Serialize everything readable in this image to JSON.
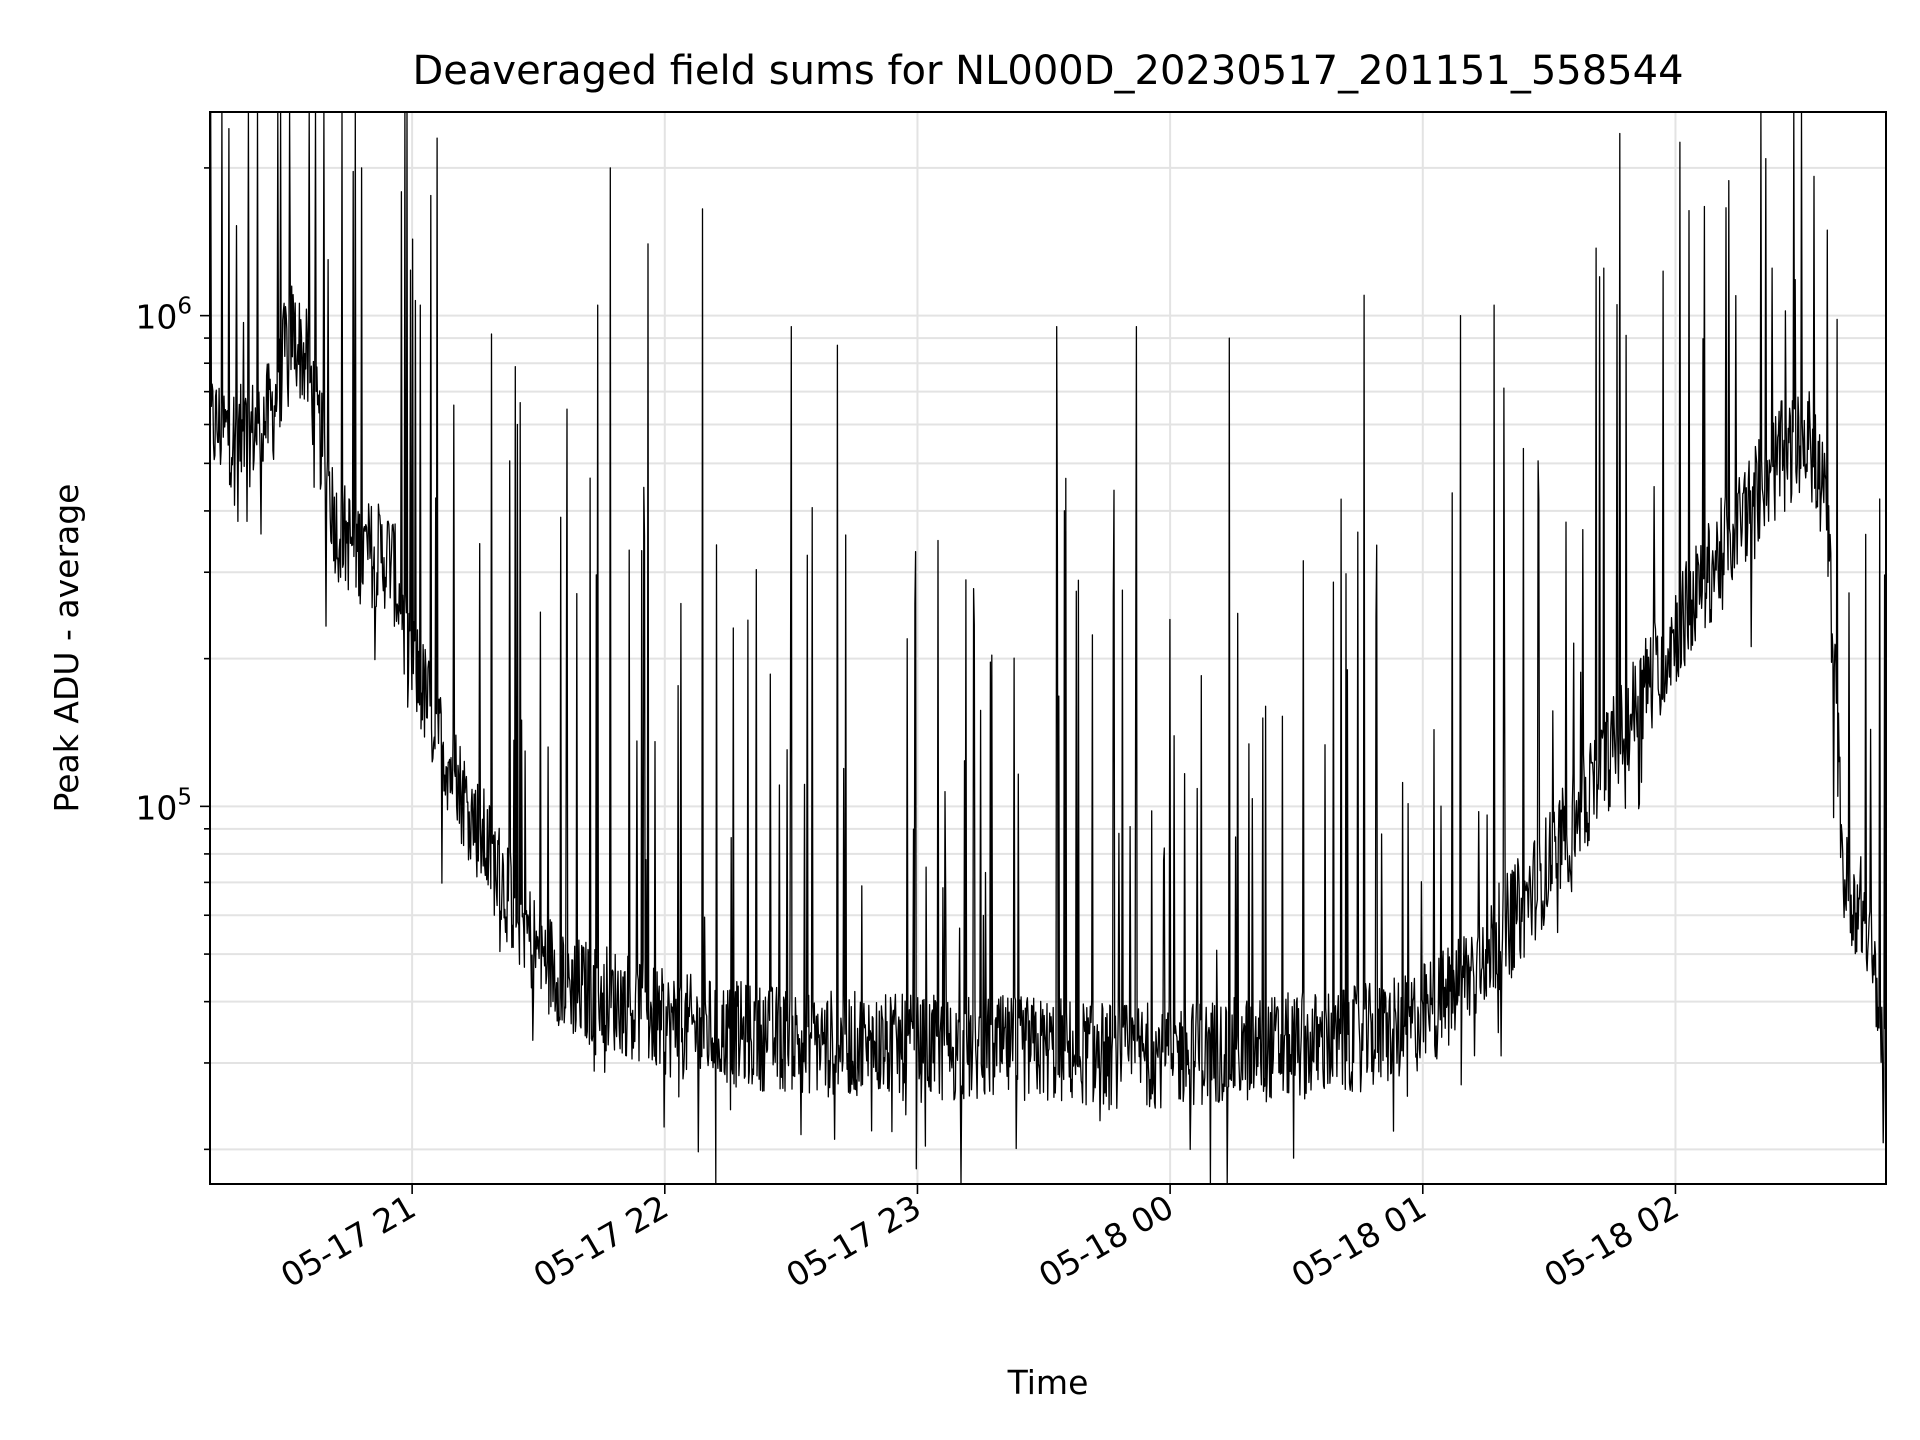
{
  "chart_data": {
    "type": "line",
    "title": "Deaveraged field sums for NL000D_20230517_201151_558544",
    "xlabel": "Time",
    "ylabel": "Peak ADU - average",
    "xlim": [
      "2023-05-17T20:12",
      "2023-05-18T02:50"
    ],
    "ylim": [
      17000,
      2600000
    ],
    "yscale": "log",
    "grid": true,
    "x_ticks": [
      {
        "t": "2023-05-17T21:00",
        "label": "05-17 21"
      },
      {
        "t": "2023-05-17T22:00",
        "label": "05-17 22"
      },
      {
        "t": "2023-05-17T23:00",
        "label": "05-17 23"
      },
      {
        "t": "2023-05-18T00:00",
        "label": "05-18 00"
      },
      {
        "t": "2023-05-18T01:00",
        "label": "05-18 01"
      },
      {
        "t": "2023-05-18T02:00",
        "label": "05-18 02"
      }
    ],
    "y_major_ticks": [
      {
        "value": 100000,
        "base": "10",
        "exp": "5"
      },
      {
        "value": 1000000,
        "base": "10",
        "exp": "6"
      }
    ],
    "line_color": "#000000",
    "series": [
      {
        "baseline": [
          {
            "x": "2023-05-17T20:12",
            "y": 600000
          },
          {
            "x": "2023-05-17T20:20",
            "y": 560000
          },
          {
            "x": "2023-05-17T20:27",
            "y": 640000
          },
          {
            "x": "2023-05-17T20:31",
            "y": 950000
          },
          {
            "x": "2023-05-17T20:35",
            "y": 800000
          },
          {
            "x": "2023-05-17T20:42",
            "y": 370000
          },
          {
            "x": "2023-05-17T20:48",
            "y": 330000
          },
          {
            "x": "2023-05-17T20:55",
            "y": 320000
          },
          {
            "x": "2023-05-17T21:00",
            "y": 200000
          },
          {
            "x": "2023-05-17T21:05",
            "y": 150000
          },
          {
            "x": "2023-05-17T21:10",
            "y": 115000
          },
          {
            "x": "2023-05-17T21:20",
            "y": 75000
          },
          {
            "x": "2023-05-17T21:30",
            "y": 50000
          },
          {
            "x": "2023-05-17T21:40",
            "y": 42000
          },
          {
            "x": "2023-05-17T21:50",
            "y": 40000
          },
          {
            "x": "2023-05-17T22:00",
            "y": 36000
          },
          {
            "x": "2023-05-17T22:20",
            "y": 34000
          },
          {
            "x": "2023-05-17T22:40",
            "y": 33000
          },
          {
            "x": "2023-05-17T23:00",
            "y": 32000
          },
          {
            "x": "2023-05-17T23:30",
            "y": 32000
          },
          {
            "x": "2023-05-17T23:50",
            "y": 31000
          },
          {
            "x": "2023-05-18T00:20",
            "y": 32000
          },
          {
            "x": "2023-05-18T00:40",
            "y": 33000
          },
          {
            "x": "2023-05-18T00:55",
            "y": 35000
          },
          {
            "x": "2023-05-18T01:05",
            "y": 40000
          },
          {
            "x": "2023-05-18T01:15",
            "y": 50000
          },
          {
            "x": "2023-05-18T01:25",
            "y": 65000
          },
          {
            "x": "2023-05-18T01:35",
            "y": 90000
          },
          {
            "x": "2023-05-18T01:45",
            "y": 130000
          },
          {
            "x": "2023-05-18T01:55",
            "y": 190000
          },
          {
            "x": "2023-05-18T02:05",
            "y": 270000
          },
          {
            "x": "2023-05-18T02:15",
            "y": 380000
          },
          {
            "x": "2023-05-18T02:25",
            "y": 520000
          },
          {
            "x": "2023-05-18T02:32",
            "y": 550000
          },
          {
            "x": "2023-05-18T02:36",
            "y": 400000
          },
          {
            "x": "2023-05-18T02:40",
            "y": 70000
          },
          {
            "x": "2023-05-18T02:45",
            "y": 60000
          },
          {
            "x": "2023-05-18T02:50",
            "y": 31000
          }
        ],
        "spikes": [
          {
            "x": "2023-05-17T20:40",
            "y": 1300000
          },
          {
            "x": "2023-05-17T20:48",
            "y": 2000000
          },
          {
            "x": "2023-05-17T21:02",
            "y": 1050000
          },
          {
            "x": "2023-05-17T21:06",
            "y": 2300000
          },
          {
            "x": "2023-05-17T21:47",
            "y": 2000000
          },
          {
            "x": "2023-05-17T21:44",
            "y": 1050000
          },
          {
            "x": "2023-05-17T21:56",
            "y": 1400000
          },
          {
            "x": "2023-05-17T22:09",
            "y": 1650000
          },
          {
            "x": "2023-05-17T22:30",
            "y": 950000
          },
          {
            "x": "2023-05-17T22:41",
            "y": 870000
          },
          {
            "x": "2023-05-17T23:33",
            "y": 950000
          },
          {
            "x": "2023-05-17T23:52",
            "y": 950000
          },
          {
            "x": "2023-05-18T00:14",
            "y": 900000
          },
          {
            "x": "2023-05-18T00:46",
            "y": 1100000
          },
          {
            "x": "2023-05-18T01:09",
            "y": 1000000
          },
          {
            "x": "2023-05-18T01:17",
            "y": 1050000
          },
          {
            "x": "2023-05-18T01:42",
            "y": 1200000
          },
          {
            "x": "2023-05-18T01:43",
            "y": 1250000
          },
          {
            "x": "2023-05-18T02:23",
            "y": 1250000
          }
        ]
      }
    ]
  }
}
